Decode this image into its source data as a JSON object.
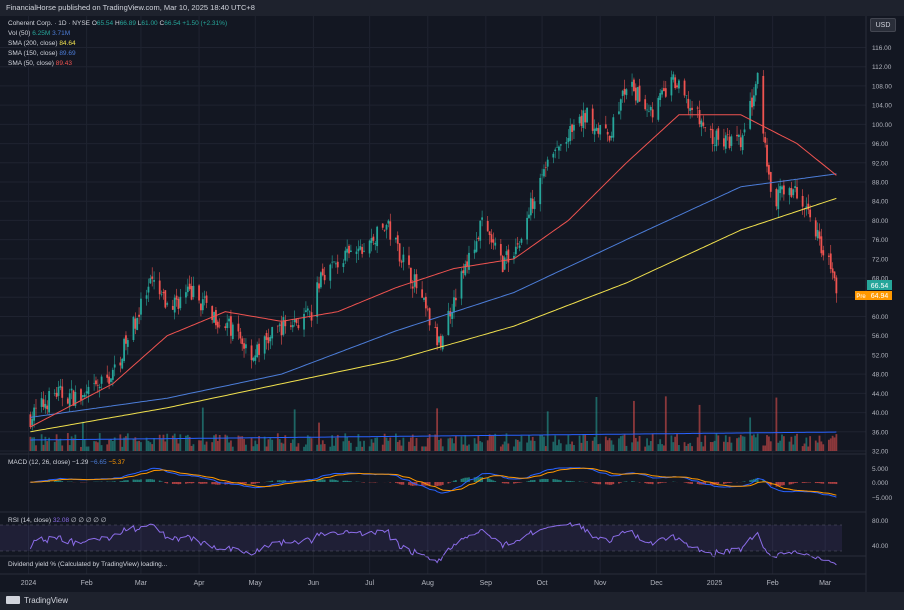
{
  "header": {
    "publish_text": "FinancialHorse published on TradingView.com, Mar 10, 2025 18:40 UTC+8",
    "currency": "USD"
  },
  "legend": {
    "symbol": "Coherent Corp. · 1D · NYSE",
    "open_label": "O",
    "open_value": "65.54",
    "high_label": "H",
    "high_value": "66.89",
    "low_label": "L",
    "low_value": "61.00",
    "close_label": "C",
    "close_value": "66.54",
    "change_value": "+1.50 (+2.31%)",
    "vol_label": "Vol (50)",
    "vol_value1": "6.25M",
    "vol_value2": "3.71M",
    "sma200_label": "SMA (200, close)",
    "sma200_value": "84.64",
    "sma150_label": "SMA (150, close)",
    "sma150_value": "89.69",
    "sma50_label": "SMA (50, close)",
    "sma50_value": "89.43"
  },
  "macd": {
    "label": "MACD (12, 26, close)",
    "v1": "−1.29",
    "v2": "−6.65",
    "v3": "−5.37",
    "axis_ticks": [
      "5.000",
      "0.000",
      "−5.000"
    ]
  },
  "rsi": {
    "label": "RSI (14, close)",
    "value": "32.08",
    "extra": "∅ ∅ ∅ ∅ ∅",
    "axis_ticks": [
      "80.00",
      "40.00"
    ]
  },
  "dividend": {
    "label": "Dividend yield % (Calculated by TradingView) loading..."
  },
  "price_badges": {
    "last": "66.54",
    "pre_label": "Pre",
    "pre_value": "64.94"
  },
  "footer": {
    "brand": "TradingView"
  },
  "colors": {
    "up": "#26a69a",
    "down": "#ef5350",
    "sma50": "#ef5350",
    "sma150": "#4c7dd8",
    "sma200": "#f0e04e",
    "macd": "#2962ff",
    "signal": "#ff9800",
    "rsi": "#8b6ce8",
    "background": "#131722"
  },
  "chart_data": {
    "type": "line",
    "title": "Coherent Corp. · 1D · NYSE",
    "x_ticks": [
      "2024",
      "Feb",
      "Mar",
      "Apr",
      "May",
      "Jun",
      "Jul",
      "Aug",
      "Sep",
      "Oct",
      "Nov",
      "Dec",
      "2025",
      "Feb",
      "Mar"
    ],
    "y_ticks": [
      116,
      112,
      108,
      104,
      100,
      96,
      92,
      88,
      84,
      80,
      76,
      72,
      68,
      64,
      60,
      56,
      52,
      48,
      44,
      40,
      36,
      32
    ],
    "ylim": [
      32,
      118
    ],
    "series": [
      {
        "name": "Coherent Corp.",
        "x": [
          "2024-01-02",
          "2024-01-15",
          "2024-01-31",
          "2024-02-15",
          "2024-02-29",
          "2024-03-07",
          "2024-03-15",
          "2024-03-28",
          "2024-04-10",
          "2024-04-19",
          "2024-04-30",
          "2024-05-15",
          "2024-05-31",
          "2024-06-05",
          "2024-06-17",
          "2024-06-28",
          "2024-07-10",
          "2024-07-25",
          "2024-08-07",
          "2024-08-15",
          "2024-08-30",
          "2024-09-10",
          "2024-09-20",
          "2024-09-30",
          "2024-10-10",
          "2024-10-25",
          "2024-11-05",
          "2024-11-15",
          "2024-11-29",
          "2024-12-10",
          "2024-12-20",
          "2024-12-31",
          "2025-01-15",
          "2025-01-24",
          "2025-01-31",
          "2025-02-10",
          "2025-02-20",
          "2025-02-28",
          "2025-03-07"
        ],
        "values": [
          39,
          44,
          43,
          48,
          61,
          67,
          62,
          65,
          60,
          57,
          52,
          58,
          60,
          69,
          72,
          74,
          79,
          67,
          54,
          64,
          79,
          71,
          76,
          90,
          95,
          102,
          97,
          108,
          103,
          109,
          103,
          97,
          96,
          109,
          84,
          87,
          82,
          74,
          66.5
        ]
      },
      {
        "name": "SMA (50, close)",
        "x": [
          "2024-01-02",
          "2024-02-15",
          "2024-03-15",
          "2024-04-15",
          "2024-05-15",
          "2024-06-14",
          "2024-07-15",
          "2024-08-15",
          "2024-09-16",
          "2024-10-15",
          "2024-11-15",
          "2024-12-13",
          "2025-01-15",
          "2025-02-14",
          "2025-03-07"
        ],
        "values": [
          37,
          46,
          56,
          61,
          59,
          61,
          66,
          70,
          72,
          80,
          92,
          102,
          102,
          96,
          89.4
        ]
      },
      {
        "name": "SMA (150, close)",
        "x": [
          "2024-01-02",
          "2024-03-15",
          "2024-05-15",
          "2024-07-15",
          "2024-09-16",
          "2024-11-15",
          "2025-01-15",
          "2025-03-07"
        ],
        "values": [
          39,
          43,
          48,
          57,
          65,
          76,
          87,
          89.7
        ]
      },
      {
        "name": "SMA (200, close)",
        "x": [
          "2024-01-02",
          "2024-03-15",
          "2024-05-15",
          "2024-07-15",
          "2024-09-16",
          "2024-11-15",
          "2025-01-15",
          "2025-03-07"
        ],
        "values": [
          36,
          41,
          46,
          51,
          58,
          67,
          78,
          84.6
        ]
      }
    ]
  }
}
